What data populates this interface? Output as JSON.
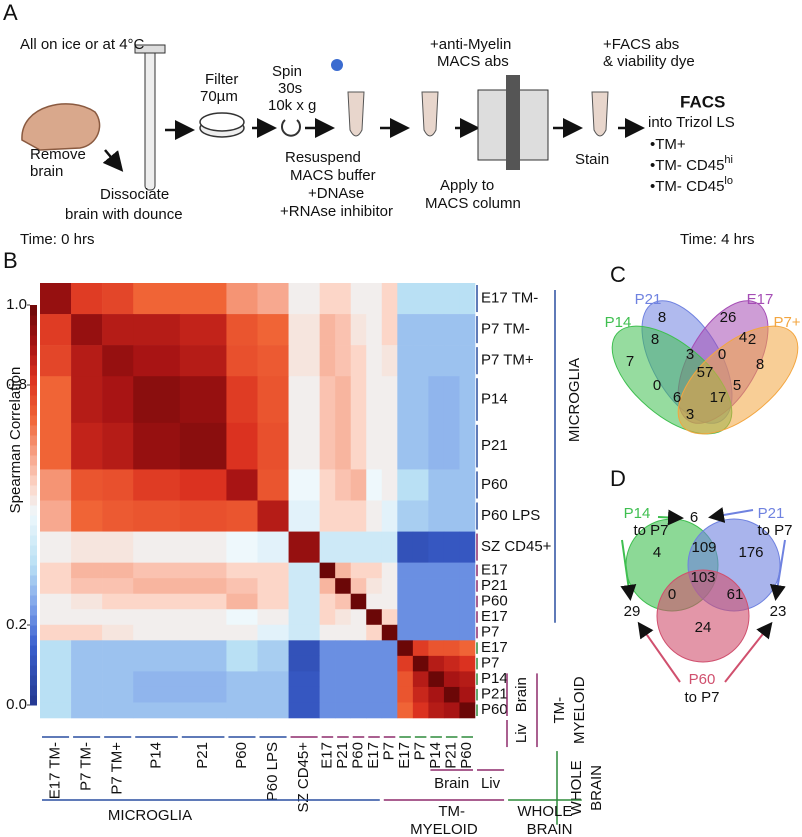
{
  "panel_a": {
    "label": "A",
    "conditions": "All on ice or at 4°C",
    "steps": [
      "Remove",
      "brain",
      "Dissociate",
      "brain with dounce",
      "Filter",
      "70µm",
      "Spin",
      "30s",
      "10k x g",
      "Resuspend",
      "MACS buffer",
      "+DNAse",
      "+RNAse inhibitor",
      "+anti-Myelin",
      "MACS abs",
      "Apply to",
      "MACS column",
      "+FACS abs",
      "& viability dye",
      "Stain"
    ],
    "facs_title": "FACS",
    "facs_into": "into Trizol LS",
    "outputs": [
      {
        "text": "•TM+"
      },
      {
        "text": "•TM- CD45",
        "sup": "hi"
      },
      {
        "text": "•TM- CD45",
        "sup": "lo"
      }
    ],
    "time_start": "Time: 0 hrs",
    "time_end": "Time: 4 hrs"
  },
  "chart_data": {
    "type": "heatmap",
    "label": "B",
    "colorbar_label": "Spearman Correlation",
    "categories": [
      "E17 TM-",
      "P7 TM-",
      "P7 TM+",
      "P14",
      "P21",
      "P60",
      "P60 LPS",
      "SZ CD45+",
      "E17",
      "P21",
      "P60",
      "E17",
      "P7",
      "E17",
      "P7",
      "P14",
      "P21",
      "P60"
    ],
    "values": [
      [
        0.93,
        0.8,
        0.78,
        0.72,
        0.72,
        0.65,
        0.62,
        0.5,
        0.55,
        0.55,
        0.5,
        0.5,
        0.55,
        0.35,
        0.35,
        0.35,
        0.35,
        0.35
      ],
      [
        0.8,
        0.93,
        0.88,
        0.88,
        0.86,
        0.75,
        0.72,
        0.52,
        0.6,
        0.58,
        0.52,
        0.5,
        0.55,
        0.3,
        0.3,
        0.3,
        0.3,
        0.3
      ],
      [
        0.78,
        0.88,
        0.93,
        0.9,
        0.88,
        0.76,
        0.74,
        0.52,
        0.6,
        0.58,
        0.55,
        0.5,
        0.52,
        0.3,
        0.3,
        0.3,
        0.3,
        0.3
      ],
      [
        0.72,
        0.88,
        0.9,
        0.95,
        0.93,
        0.8,
        0.75,
        0.5,
        0.58,
        0.6,
        0.55,
        0.5,
        0.5,
        0.3,
        0.3,
        0.28,
        0.28,
        0.3
      ],
      [
        0.72,
        0.86,
        0.88,
        0.93,
        0.95,
        0.82,
        0.76,
        0.5,
        0.58,
        0.6,
        0.55,
        0.5,
        0.5,
        0.3,
        0.3,
        0.28,
        0.28,
        0.3
      ],
      [
        0.65,
        0.75,
        0.76,
        0.8,
        0.82,
        0.9,
        0.75,
        0.48,
        0.55,
        0.58,
        0.6,
        0.48,
        0.5,
        0.35,
        0.35,
        0.3,
        0.3,
        0.3
      ],
      [
        0.62,
        0.72,
        0.74,
        0.75,
        0.76,
        0.75,
        0.88,
        0.45,
        0.55,
        0.55,
        0.55,
        0.5,
        0.45,
        0.32,
        0.32,
        0.3,
        0.3,
        0.3
      ],
      [
        0.5,
        0.52,
        0.52,
        0.5,
        0.5,
        0.48,
        0.45,
        0.93,
        0.4,
        0.4,
        0.4,
        0.4,
        0.4,
        0.1,
        0.1,
        0.12,
        0.12,
        0.12
      ],
      [
        0.55,
        0.6,
        0.6,
        0.58,
        0.58,
        0.55,
        0.55,
        0.4,
        1.0,
        0.6,
        0.55,
        0.55,
        0.5,
        0.22,
        0.22,
        0.22,
        0.22,
        0.22
      ],
      [
        0.55,
        0.58,
        0.58,
        0.6,
        0.6,
        0.58,
        0.55,
        0.4,
        0.6,
        1.0,
        0.58,
        0.52,
        0.5,
        0.22,
        0.22,
        0.22,
        0.22,
        0.22
      ],
      [
        0.5,
        0.52,
        0.55,
        0.55,
        0.55,
        0.6,
        0.55,
        0.4,
        0.55,
        0.58,
        1.0,
        0.5,
        0.5,
        0.22,
        0.22,
        0.22,
        0.22,
        0.22
      ],
      [
        0.5,
        0.5,
        0.5,
        0.5,
        0.5,
        0.48,
        0.5,
        0.4,
        0.55,
        0.52,
        0.5,
        1.0,
        0.55,
        0.22,
        0.22,
        0.22,
        0.22,
        0.22
      ],
      [
        0.55,
        0.55,
        0.52,
        0.5,
        0.5,
        0.5,
        0.45,
        0.4,
        0.5,
        0.5,
        0.5,
        0.55,
        1.0,
        0.22,
        0.22,
        0.22,
        0.22,
        0.22
      ],
      [
        0.35,
        0.3,
        0.3,
        0.3,
        0.3,
        0.35,
        0.32,
        0.1,
        0.22,
        0.22,
        0.22,
        0.22,
        0.22,
        1.0,
        0.8,
        0.75,
        0.75,
        0.72
      ],
      [
        0.35,
        0.3,
        0.3,
        0.3,
        0.3,
        0.35,
        0.32,
        0.1,
        0.22,
        0.22,
        0.22,
        0.22,
        0.22,
        0.8,
        1.0,
        0.88,
        0.85,
        0.82
      ],
      [
        0.35,
        0.3,
        0.3,
        0.28,
        0.28,
        0.3,
        0.3,
        0.12,
        0.22,
        0.22,
        0.22,
        0.22,
        0.22,
        0.75,
        0.88,
        1.0,
        0.9,
        0.88
      ],
      [
        0.35,
        0.3,
        0.3,
        0.28,
        0.28,
        0.3,
        0.3,
        0.12,
        0.22,
        0.22,
        0.22,
        0.22,
        0.22,
        0.75,
        0.85,
        0.9,
        1.0,
        0.9
      ],
      [
        0.35,
        0.3,
        0.3,
        0.3,
        0.3,
        0.3,
        0.3,
        0.12,
        0.22,
        0.22,
        0.22,
        0.22,
        0.22,
        0.72,
        0.82,
        0.88,
        0.9,
        1.0
      ]
    ],
    "zlim": [
      0,
      1
    ],
    "zticks": [
      {
        "value": 0,
        "label": "0.0"
      },
      0.2,
      0.8,
      {
        "value": 1,
        "label": "1.0"
      }
    ],
    "groups": [
      {
        "name": [
          "MICROGLIA"
        ],
        "color": "#2a4fa0"
      },
      {
        "name": [
          "TM-",
          "MYELOID"
        ],
        "color": "#8e2a6b"
      },
      {
        "name": [
          "WHOLE",
          "BRAIN"
        ],
        "color": "#2e8b3a"
      }
    ],
    "subgroups": [
      "Brain",
      "Liv"
    ]
  },
  "venn_c": {
    "label": "C",
    "sets": [
      {
        "name": "P21",
        "color": "#6f82e0"
      },
      {
        "name": "E17",
        "color": "#a54db5"
      },
      {
        "name": "P14",
        "color": "#3fbf50"
      },
      {
        "name": "P7+",
        "color": "#f3a640"
      }
    ],
    "counts": [
      8,
      26,
      2,
      7,
      8,
      3,
      0,
      4,
      8,
      57,
      5,
      0,
      6,
      17,
      3
    ]
  },
  "venn_d": {
    "label": "D",
    "sets": [
      {
        "name": "P14",
        "to": "to P7",
        "color": "#3fbf50"
      },
      {
        "name": "P21",
        "to": "to P7",
        "color": "#6f82e0"
      },
      {
        "name": "P60",
        "to": "to P7",
        "color": "#d0506e"
      }
    ],
    "counts": [
      6,
      4,
      109,
      176,
      103,
      0,
      61,
      24,
      29,
      23
    ]
  }
}
